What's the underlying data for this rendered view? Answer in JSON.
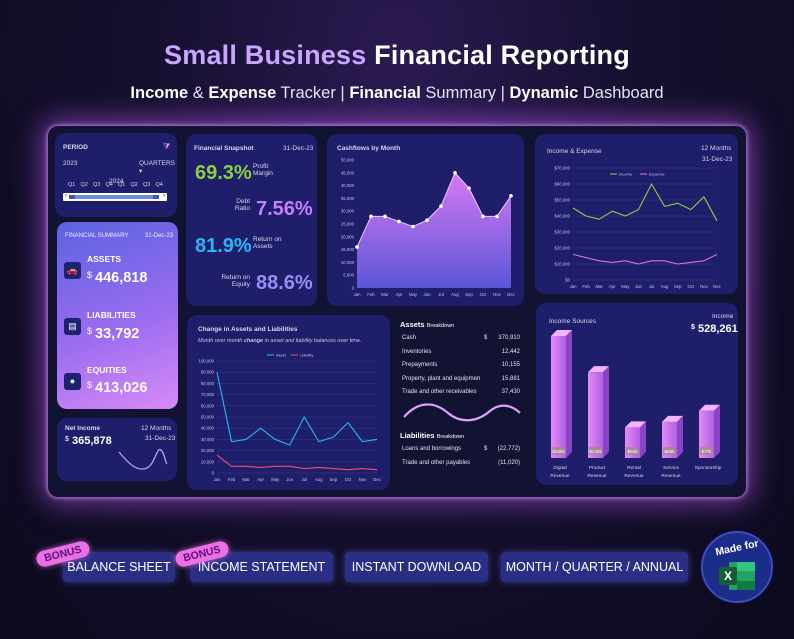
{
  "header": {
    "title_part1": "Small Business",
    "title_part2": "Financial Reporting",
    "subtitle": [
      {
        "text": "Income",
        "bold": true
      },
      {
        "text": " & ",
        "bold": false
      },
      {
        "text": "Expense",
        "bold": true
      },
      {
        "text": " Tracker | ",
        "bold": false
      },
      {
        "text": "Financial",
        "bold": true
      },
      {
        "text": " Summary | ",
        "bold": false
      },
      {
        "text": "Dynamic",
        "bold": true
      },
      {
        "text": " Dashboard",
        "bold": false
      }
    ]
  },
  "period": {
    "label": "PERIOD",
    "granularity": "QUARTERS",
    "years": [
      "2023",
      "2024"
    ],
    "quarters": [
      "Q1",
      "Q2",
      "Q3",
      "Q4",
      "Q1",
      "Q2",
      "Q3",
      "Q4"
    ]
  },
  "financial_summary": {
    "title": "FINANCIAL SUMMARY",
    "date": "31-Dec-23",
    "items": [
      {
        "name": "ASSETS",
        "currency": "$",
        "value": "446,818",
        "icon": "car-icon"
      },
      {
        "name": "LIABILITIES",
        "currency": "$",
        "value": "33,792",
        "icon": "cash-icon"
      },
      {
        "name": "EQUITIES",
        "currency": "$",
        "value": "413,026",
        "icon": "piggy-bank-icon"
      }
    ]
  },
  "net_income": {
    "title": "Net Income",
    "currency": "$",
    "value": "365,878",
    "months": "12",
    "months_label": "Months",
    "date": "31-Dec-23"
  },
  "snapshot": {
    "title": "Financial Snapshot",
    "date": "31-Dec-23",
    "profit_margin": {
      "value": "69.3%",
      "label1": "Profit",
      "label2": "Margin"
    },
    "debt_ratio": {
      "value": "7.56%",
      "label1": "Debt",
      "label2": "Ratio"
    },
    "return_assets": {
      "value": "81.9%",
      "label1": "Return on",
      "label2": "Assets"
    },
    "return_equity": {
      "value": "88.6%",
      "label1": "Return on",
      "label2": "Equity"
    }
  },
  "cashflows": {
    "title": "Cashflows by Month"
  },
  "income_expense": {
    "title": "Income & Expense",
    "months": "12",
    "months_label": "Months",
    "date": "31-Dec-23"
  },
  "change_assets": {
    "title": "Change in Assets and Liabilities",
    "subtitle_pre": "Month over month ",
    "subtitle_bold": "change",
    "subtitle_post": " in asset and liability balances over time."
  },
  "assets_breakdown": {
    "title": "Assets",
    "title_suffix": "Breakdown",
    "rows": [
      {
        "label": "Cash",
        "currency": "$",
        "value": "370,910"
      },
      {
        "label": "Inventories",
        "currency": "",
        "value": "12,442"
      },
      {
        "label": "Prepayments",
        "currency": "",
        "value": "10,155"
      },
      {
        "label": "Property, plant and equipmen",
        "currency": "",
        "value": "15,881"
      },
      {
        "label": "Trade and other receivables",
        "currency": "",
        "value": "37,430"
      }
    ]
  },
  "liabilities_breakdown": {
    "title": "Liabilities",
    "title_suffix": "Breakdown",
    "rows": [
      {
        "label": "Loans and borrowings",
        "currency": "$",
        "value": "(22,772)"
      },
      {
        "label": "Trade and other payables",
        "currency": "",
        "value": "(11,020)"
      }
    ]
  },
  "income_sources": {
    "title": "Income Sources",
    "total_label": "Income",
    "currency": "$",
    "total": "528,261"
  },
  "footer": {
    "pills": [
      "BALANCE SHEET",
      "INCOME STATEMENT",
      "INSTANT DOWNLOAD",
      "MONTH / QUARTER / ANNUAL"
    ],
    "bonus_label": "BONUS",
    "made_for": "Made for",
    "excel_letter": "X"
  },
  "colors": {
    "accent_purple": "#c77dff",
    "green": "#8bd13d",
    "cyan": "#29b6f6",
    "pink": "#e070e0",
    "card": "#1e1e6a"
  },
  "chart_data": [
    {
      "type": "area",
      "title": "Cashflows by Month",
      "categories": [
        "Jan",
        "Feb",
        "Mar",
        "Apr",
        "May",
        "Jun",
        "Jul",
        "Aug",
        "Sep",
        "Oct",
        "Nov",
        "Dec"
      ],
      "values": [
        16000,
        28000,
        28000,
        26000,
        24000,
        26500,
        32000,
        45000,
        39000,
        28000,
        28000,
        36000
      ],
      "yticks": [
        "50,000",
        "45,000",
        "40,000",
        "35,000",
        "30,000",
        "25,000",
        "20,000",
        "15,000",
        "10,000",
        "5,000",
        "0"
      ],
      "ylim": [
        0,
        50000
      ]
    },
    {
      "type": "line",
      "title": "Income & Expense",
      "categories": [
        "Jan",
        "Feb",
        "Mar",
        "Apr",
        "May",
        "Jun",
        "Jul",
        "Aug",
        "Sep",
        "Oct",
        "Nov",
        "Dec"
      ],
      "series": [
        {
          "name": "Income",
          "color": "#8bd13d",
          "values": [
            45000,
            40000,
            38000,
            43000,
            40000,
            44000,
            60000,
            46000,
            48000,
            44000,
            52000,
            37000
          ]
        },
        {
          "name": "Expense",
          "color": "#e070e0",
          "values": [
            16000,
            14000,
            12000,
            11000,
            12000,
            10000,
            12000,
            12000,
            10000,
            11000,
            12000,
            16000
          ]
        }
      ],
      "yticks": [
        "$70,000",
        "$60,000",
        "$50,000",
        "$40,000",
        "$30,000",
        "$20,000",
        "$10,000",
        "$0"
      ],
      "ylim": [
        0,
        70000
      ]
    },
    {
      "type": "line",
      "title": "Change in Assets and Liabilities",
      "categories": [
        "Jan",
        "Feb",
        "Mar",
        "Apr",
        "May",
        "Jun",
        "Jul",
        "Aug",
        "Sep",
        "Oct",
        "Nov",
        "Dec"
      ],
      "series": [
        {
          "name": "Asset",
          "color": "#29b6f6",
          "values": [
            90000,
            28000,
            30000,
            40000,
            30000,
            25000,
            50000,
            28000,
            32000,
            45000,
            28000,
            30000
          ]
        },
        {
          "name": "Liability",
          "color": "#f05070",
          "values": [
            16000,
            6000,
            6000,
            5000,
            6000,
            6000,
            4000,
            5000,
            4000,
            3000,
            4000,
            3000
          ]
        }
      ],
      "yticks": [
        "100,000",
        "90,000",
        "80,000",
        "70,000",
        "60,000",
        "50,000",
        "40,000",
        "30,000",
        "20,000",
        "10,000",
        "0"
      ],
      "ylim": [
        0,
        100000
      ]
    },
    {
      "type": "bar",
      "title": "Income Sources",
      "categories": [
        "Digital Revenue",
        "Product Revenue",
        "Rental Revenue",
        "Service Revenue",
        "Sponsorship"
      ],
      "values": [
        199000,
        140000,
        50000,
        59000,
        77000
      ],
      "data_labels": [
        "$199k",
        "$140k",
        "$50k",
        "$59k",
        "$77k"
      ]
    }
  ]
}
